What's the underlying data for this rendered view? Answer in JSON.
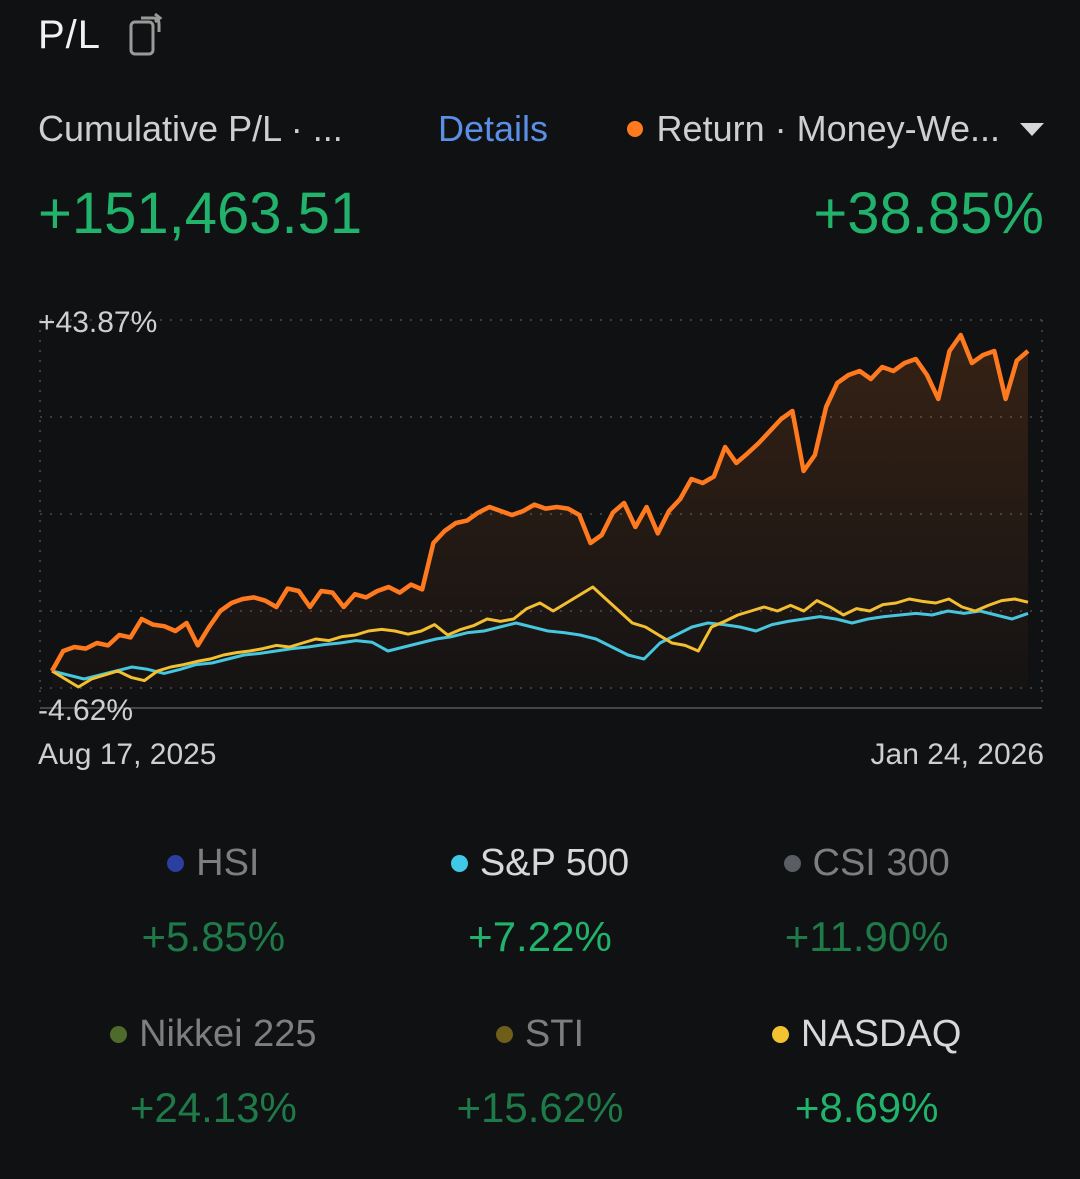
{
  "header": {
    "title": "P/L",
    "share_icon": "share-icon"
  },
  "summary": {
    "left_label": "Cumulative P/L · ...",
    "details": "Details",
    "right_label": "Return · Money-We...",
    "return_color": "#ff7a1f",
    "pl_value": "+151,463.51",
    "return_value": "+38.85%"
  },
  "chart_data": {
    "type": "line",
    "y_top_label": "+43.87%",
    "y_bottom_label": "-4.62%",
    "ylim": [
      -4.62,
      43.87
    ],
    "x_start_label": "Aug 17, 2025",
    "x_end_label": "Jan 24, 2026",
    "series": [
      {
        "name": "Return",
        "color": "#ff7a1f",
        "values": [
          0.0,
          2.5,
          3.0,
          2.8,
          3.5,
          3.2,
          4.5,
          4.2,
          6.5,
          5.8,
          5.6,
          5.0,
          6.0,
          3.2,
          5.5,
          7.5,
          8.5,
          9.0,
          9.2,
          8.8,
          8.0,
          10.3,
          10.0,
          8.0,
          10.0,
          9.8,
          8.0,
          9.6,
          9.2,
          10.0,
          10.5,
          9.8,
          10.8,
          10.2,
          16.0,
          17.5,
          18.5,
          18.8,
          19.8,
          20.5,
          20.0,
          19.5,
          20.0,
          20.8,
          20.3,
          20.5,
          20.3,
          19.5,
          16.0,
          17.0,
          19.8,
          21.0,
          18.0,
          20.5,
          17.2,
          20.0,
          21.5,
          24.0,
          23.5,
          24.3,
          28.0,
          26.0,
          27.2,
          28.5,
          30.0,
          31.5,
          32.5,
          25.0,
          27.0,
          33.0,
          36.0,
          37.0,
          37.5,
          36.5,
          38.0,
          37.5,
          38.5,
          39.0,
          37.0,
          34.0,
          40.0,
          42.0,
          38.5,
          39.5,
          40.0,
          34.0,
          38.8,
          40.0
        ],
        "end_value": 38.85
      },
      {
        "name": "NASDAQ",
        "color": "#f2c230",
        "values": [
          0.0,
          -1.0,
          -2.0,
          -1.0,
          -0.5,
          0.0,
          -0.8,
          -1.2,
          0.0,
          0.5,
          0.8,
          1.2,
          1.5,
          2.0,
          2.3,
          2.5,
          2.8,
          3.2,
          3.0,
          3.5,
          4.0,
          3.8,
          4.3,
          4.5,
          5.0,
          5.2,
          5.0,
          4.6,
          5.0,
          5.8,
          4.5,
          5.2,
          5.7,
          6.5,
          6.2,
          6.5,
          7.8,
          8.5,
          7.5,
          8.5,
          9.5,
          10.5,
          9.0,
          7.5,
          6.0,
          5.5,
          4.5,
          3.5,
          3.2,
          2.5,
          5.5,
          6.2,
          7.0,
          7.5,
          8.0,
          7.5,
          8.2,
          7.5,
          8.8,
          8.0,
          7.0,
          7.8,
          7.5,
          8.3,
          8.5,
          9.0,
          8.7,
          8.5,
          9.0,
          8.0,
          7.5,
          8.2,
          8.8,
          9.0,
          8.6
        ],
        "end_value": 8.69
      },
      {
        "name": "S&P 500",
        "color": "#3fc9e6",
        "values": [
          0.0,
          -0.5,
          -1.0,
          -0.5,
          0.0,
          0.5,
          0.2,
          -0.3,
          0.2,
          0.8,
          1.0,
          1.5,
          2.0,
          2.2,
          2.5,
          2.8,
          3.0,
          3.3,
          3.5,
          3.8,
          3.6,
          2.5,
          3.0,
          3.5,
          4.0,
          4.3,
          4.8,
          5.0,
          5.5,
          6.0,
          5.5,
          5.0,
          4.8,
          4.5,
          4.0,
          3.0,
          2.0,
          1.5,
          3.5,
          4.5,
          5.5,
          6.0,
          5.8,
          5.5,
          5.0,
          5.8,
          6.2,
          6.5,
          6.8,
          6.5,
          6.0,
          6.5,
          6.8,
          7.0,
          7.2,
          7.0,
          7.5,
          7.2,
          7.5,
          7.0,
          6.5,
          7.2
        ],
        "end_value": 7.22
      }
    ],
    "grid": true
  },
  "legend": [
    {
      "name": "HSI",
      "value": "+5.85%",
      "color": "#2b3f9e",
      "active": false
    },
    {
      "name": "S&P 500",
      "value": "+7.22%",
      "color": "#3fc9e6",
      "active": true
    },
    {
      "name": "CSI 300",
      "value": "+11.90%",
      "color": "#5a5d63",
      "active": false
    },
    {
      "name": "Nikkei 225",
      "value": "+24.13%",
      "color": "#4f6b2b",
      "active": false
    },
    {
      "name": "STI",
      "value": "+15.62%",
      "color": "#6f5e1a",
      "active": false
    },
    {
      "name": "NASDAQ",
      "value": "+8.69%",
      "color": "#f2c230",
      "active": true
    }
  ]
}
